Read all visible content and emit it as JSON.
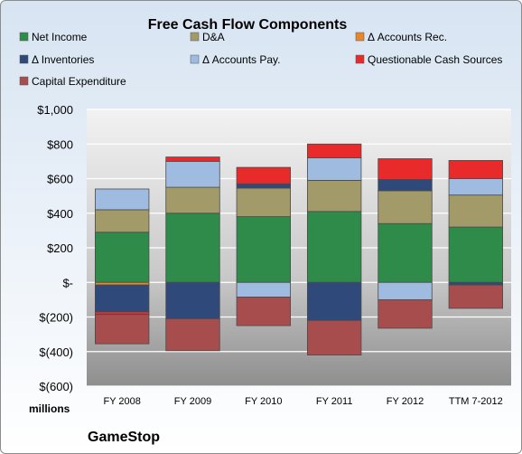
{
  "chart_data": {
    "type": "bar",
    "stacked": true,
    "title": "Free Cash Flow Components",
    "unit_label": "millions",
    "company": "GameStop",
    "categories": [
      "FY 2008",
      "FY 2009",
      "FY 2010",
      "FY 2011",
      "FY 2012",
      "TTM 7-2012"
    ],
    "ylim": [
      -600,
      1000
    ],
    "yticks": [
      -600,
      -400,
      -200,
      0,
      200,
      400,
      600,
      800,
      1000
    ],
    "ytick_labels": [
      "$(600)",
      "$(400)",
      "$(200)",
      "$-",
      "$200",
      "$400",
      "$600",
      "$800",
      "$1,000"
    ],
    "grid": true,
    "legend_position": "top",
    "series": [
      {
        "name": "Net Income",
        "color": "#2e8b4a",
        "values": [
          290,
          400,
          380,
          410,
          340,
          320
        ]
      },
      {
        "name": "D&A",
        "color": "#a39a6a",
        "values": [
          130,
          150,
          165,
          180,
          190,
          185
        ]
      },
      {
        "name": "Δ Accounts Rec.",
        "color": "#e8862a",
        "values": [
          -15,
          0,
          0,
          0,
          0,
          0
        ]
      },
      {
        "name": "Δ Inventories",
        "color": "#2f4a7a",
        "values": [
          -155,
          -210,
          25,
          -220,
          65,
          -15
        ]
      },
      {
        "name": "Δ Accounts Pay.",
        "color": "#9fbce0",
        "values": [
          120,
          150,
          -85,
          130,
          -100,
          95
        ]
      },
      {
        "name": "Questionable Cash Sources",
        "color": "#e82a2a",
        "values": [
          -15,
          25,
          95,
          80,
          120,
          105
        ]
      },
      {
        "name": "Capital Expenditure",
        "color": "#a84d4d",
        "values": [
          -170,
          -185,
          -165,
          -200,
          -165,
          -135
        ]
      }
    ]
  }
}
